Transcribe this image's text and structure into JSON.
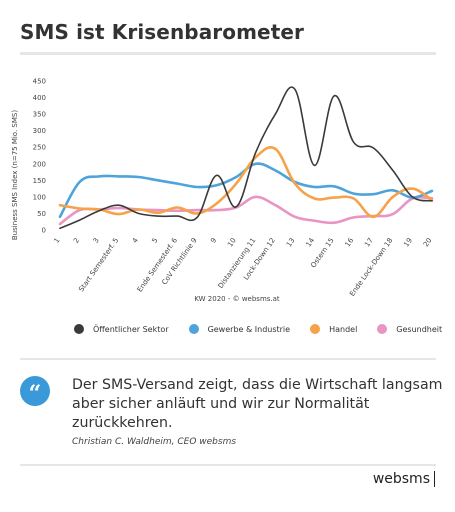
{
  "title": "SMS ist Krisenbarometer",
  "quote": {
    "icon": "quote-icon",
    "icon_glyph": "“",
    "text": "Der SMS-Versand zeigt, dass die Wirtschaft langsam aber sicher anläuft und wir zur Normalität zurückkehren.",
    "author": "Christian C. Waldheim, CEO websms"
  },
  "brand": "websms",
  "chart_data": {
    "type": "line",
    "ylabel": "Business SMS Index (n=75 Mio. SMS)",
    "xlabel": "KW 2020 - © websms.at",
    "ylim": [
      0,
      450
    ],
    "yticks": [
      0,
      50,
      100,
      150,
      200,
      250,
      300,
      350,
      400,
      450
    ],
    "grid": false,
    "legend_position": "bottom",
    "x": [
      1,
      2,
      3,
      4,
      5,
      6,
      7,
      8,
      9,
      10,
      11,
      12,
      13,
      14,
      15,
      16,
      17,
      18,
      19,
      20
    ],
    "x_tick_labels": [
      "1",
      "2",
      "3",
      "Start Semesterf. 5",
      "4",
      "5",
      "Ende Semesterf. 6",
      "CoV Richtlinie 9",
      "9",
      "10",
      "Distanzierung 11",
      "Lock-Down 12",
      "13",
      "14",
      "Ostern 15",
      "16",
      "17",
      "Ende Lock-Down 18",
      "19",
      "20"
    ],
    "series": [
      {
        "name": "Öffentlicher Sektor",
        "color": "#3a3a3a",
        "values": [
          5,
          30,
          58,
          75,
          50,
          42,
          42,
          38,
          165,
          70,
          235,
          350,
          425,
          195,
          405,
          265,
          248,
          180,
          100,
          88
        ]
      },
      {
        "name": "Gewerbe & Industrie",
        "color": "#4ea3db",
        "values": [
          40,
          145,
          162,
          162,
          160,
          150,
          140,
          130,
          135,
          160,
          200,
          180,
          145,
          130,
          132,
          110,
          108,
          120,
          98,
          118
        ]
      },
      {
        "name": "Handel",
        "color": "#f5a24a",
        "values": [
          75,
          65,
          62,
          48,
          62,
          52,
          68,
          50,
          80,
          140,
          220,
          245,
          140,
          95,
          98,
          95,
          40,
          100,
          125,
          90
        ]
      },
      {
        "name": "Gesundheit",
        "color": "#e994c2",
        "values": [
          18,
          60,
          62,
          66,
          62,
          60,
          58,
          60,
          60,
          68,
          100,
          75,
          40,
          28,
          22,
          38,
          42,
          48,
          95,
          96
        ]
      }
    ]
  }
}
